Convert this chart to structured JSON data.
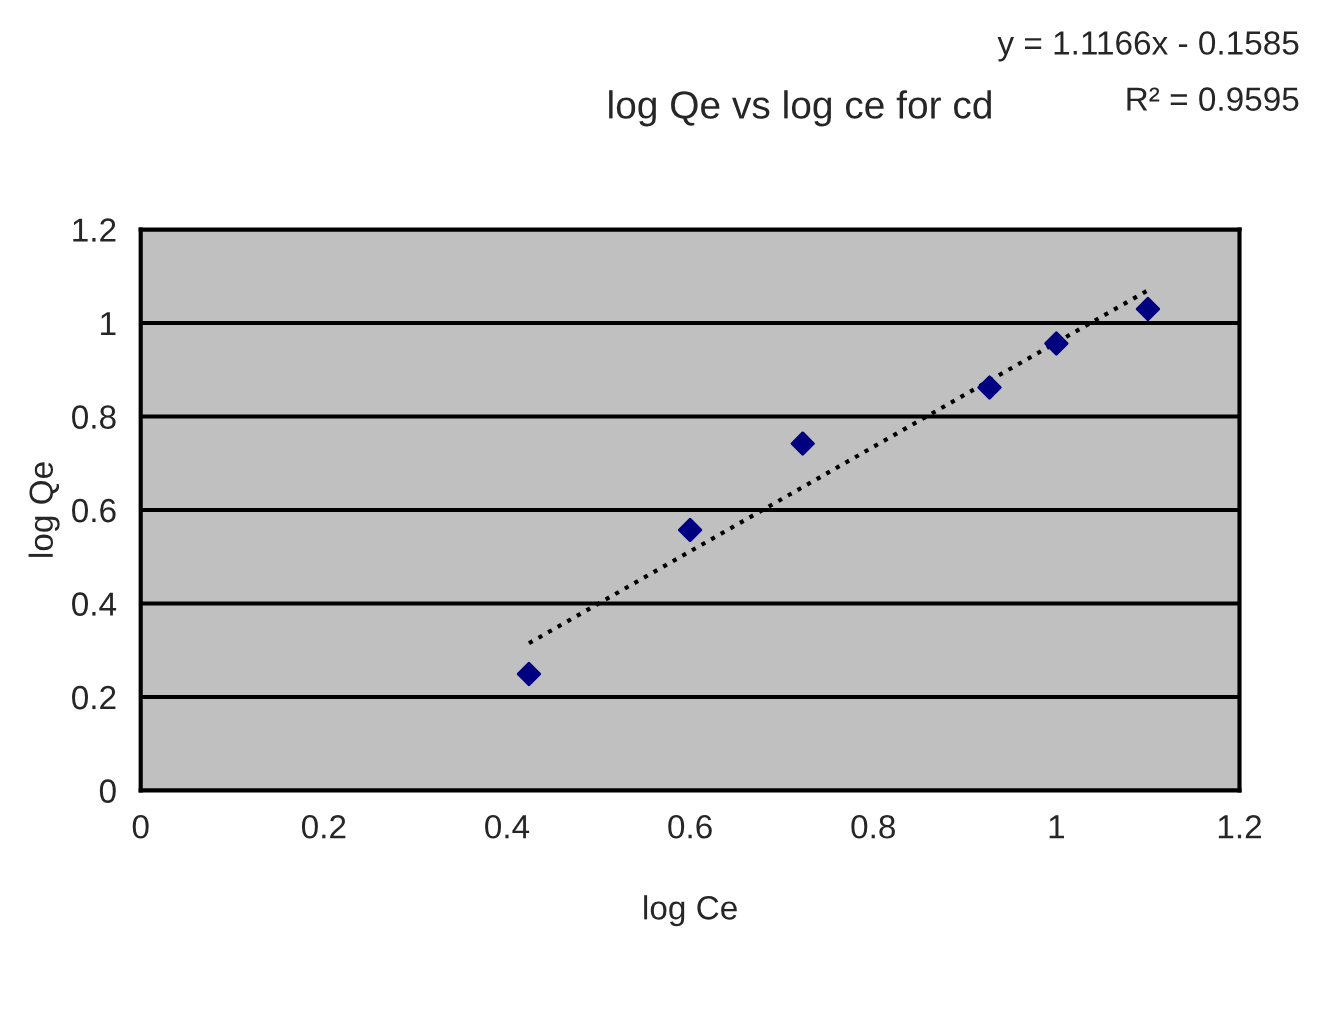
{
  "chart_data": {
    "type": "scatter",
    "title": "log Qe vs log ce for cd",
    "xlabel": "log Ce",
    "ylabel": "log Qe",
    "annotations": [
      "y = 1.1166x - 0.1585",
      "R² = 0.9595"
    ],
    "series": [
      {
        "color": "#000080",
        "marker": "diamond",
        "x": [
          0.424,
          0.6,
          0.723,
          0.927,
          1.0,
          1.1
        ],
        "values": [
          0.249,
          0.557,
          0.742,
          0.862,
          0.956,
          1.03
        ]
      },
      {
        "type": "line",
        "color": "#000000",
        "line_style": "dotted",
        "marker": "none",
        "x": [
          0.424,
          1.1
        ],
        "values": [
          0.315,
          1.07
        ]
      }
    ],
    "xlim": [
      0,
      1.2
    ],
    "ylim": [
      0,
      1.2
    ],
    "xticks": [
      0,
      0.2,
      0.4,
      0.6,
      0.8,
      1,
      1.2
    ],
    "yticks": [
      0,
      0.2,
      0.4,
      0.6,
      0.8,
      1,
      1.2
    ],
    "grid": "y"
  }
}
